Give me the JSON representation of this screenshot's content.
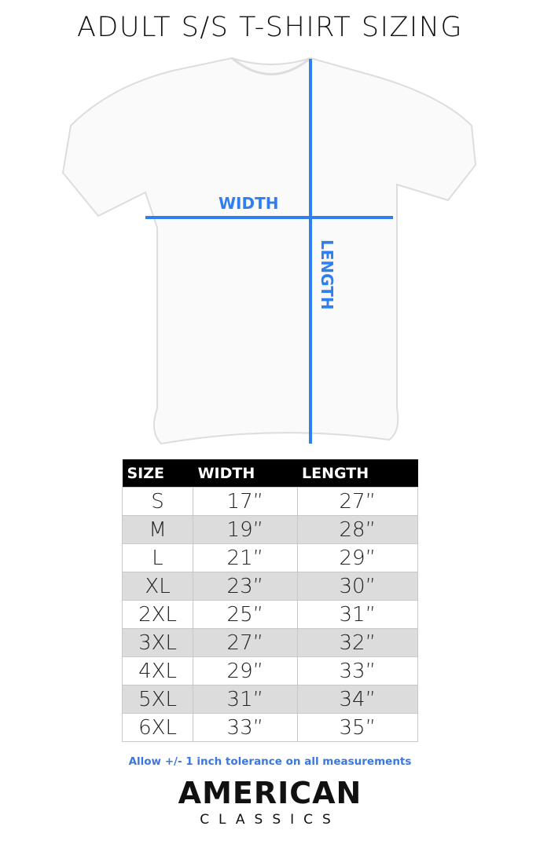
{
  "title": "ADULT S/S T-SHIRT SIZING",
  "diagram": {
    "width_label": "WIDTH",
    "length_label": "LENGTH",
    "line_color": "#2f7ff0"
  },
  "table": {
    "headers": [
      "SIZE",
      "WIDTH",
      "LENGTH"
    ],
    "rows": [
      [
        "S",
        "17”",
        "27”"
      ],
      [
        "M",
        "19”",
        "28”"
      ],
      [
        "L",
        "21”",
        "29”"
      ],
      [
        "XL",
        "23”",
        "30”"
      ],
      [
        "2XL",
        "25”",
        "31”"
      ],
      [
        "3XL",
        "27”",
        "32”"
      ],
      [
        "4XL",
        "29”",
        "33”"
      ],
      [
        "5XL",
        "31”",
        "34”"
      ],
      [
        "6XL",
        "33”",
        "35”"
      ]
    ]
  },
  "note": "Allow +/- 1 inch tolerance on all measurements",
  "logo": {
    "line1": "AMERICAN",
    "line2": "CLASSICS"
  }
}
